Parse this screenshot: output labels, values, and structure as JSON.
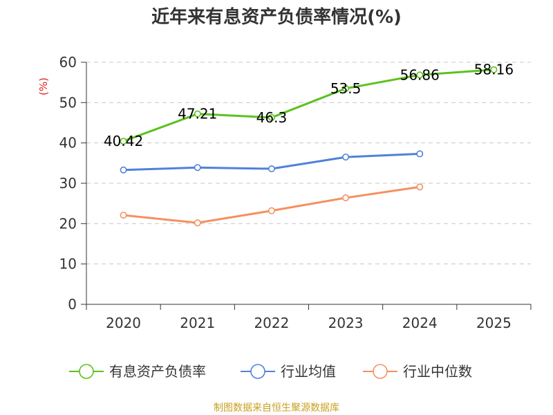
{
  "chart_data": {
    "type": "line",
    "title": "近年来有息资产负债率情况(%)",
    "ylabel": "(%)",
    "xlabel": "",
    "categories": [
      "2020",
      "2021",
      "2022",
      "2023",
      "2024",
      "2025"
    ],
    "ylim": [
      0,
      60
    ],
    "yticks": [
      0,
      10,
      20,
      30,
      40,
      50,
      60
    ],
    "grid": true,
    "legend_position": "bottom",
    "series": [
      {
        "name": "有息资产负债率",
        "color": "#5bc11e",
        "values": [
          40.42,
          47.21,
          46.3,
          53.5,
          56.86,
          58.16
        ],
        "labels": [
          "40.42",
          "47.21",
          "46.3",
          "53.5",
          "56.86",
          "58.16"
        ],
        "show_labels": true
      },
      {
        "name": "行业均值",
        "color": "#4f81d9",
        "values": [
          33.3,
          33.9,
          33.6,
          36.5,
          37.3,
          null
        ],
        "show_labels": false
      },
      {
        "name": "行业中位数",
        "color": "#f59060",
        "values": [
          22.1,
          20.2,
          23.2,
          26.4,
          29.1,
          null
        ],
        "show_labels": false
      }
    ],
    "source": "制图数据来自恒生聚源数据库"
  }
}
